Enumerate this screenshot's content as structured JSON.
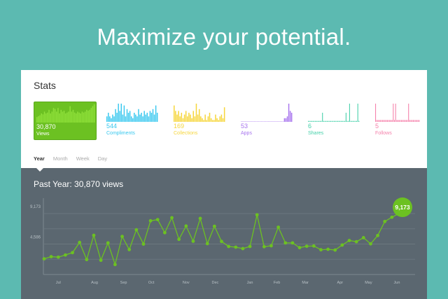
{
  "headline": "Maximize your potential.",
  "card": {
    "title": "Stats"
  },
  "stats": [
    {
      "value": "30,870",
      "label": "Views",
      "color": "#8fe03a",
      "active": true,
      "bars": [
        0.3,
        0.35,
        0.4,
        0.5,
        0.45,
        0.6,
        0.5,
        0.55,
        0.7,
        0.5,
        0.6,
        0.8,
        0.75,
        0.6,
        0.8,
        0.5,
        0.7,
        0.6,
        0.65,
        0.5,
        0.55,
        0.6,
        0.9,
        0.6,
        0.7,
        0.55,
        0.5,
        0.6,
        0.55,
        0.5,
        0.6,
        0.55,
        0.6,
        0.7,
        0.65,
        0.7,
        0.8,
        0.9,
        1.0
      ]
    },
    {
      "value": "544",
      "label": "Compliments",
      "color": "#38c8ef",
      "active": false,
      "bars": [
        0.3,
        0.5,
        0.3,
        0.2,
        0.4,
        0.3,
        0.7,
        0.5,
        1.0,
        0.6,
        1.0,
        0.4,
        0.9,
        0.3,
        0.7,
        0.5,
        0.6,
        0.3,
        0.2,
        0.5,
        0.4,
        0.3,
        0.7,
        0.4,
        0.5,
        0.3,
        0.6,
        0.4,
        0.5,
        0.3,
        0.6,
        0.5,
        0.7,
        0.4,
        0.9,
        0.5
      ]
    },
    {
      "value": "169",
      "label": "Collections",
      "color": "#f6d63c",
      "active": false,
      "bars": [
        0.9,
        0.6,
        0.4,
        0.6,
        0.3,
        0.5,
        0.2,
        0.4,
        0.6,
        0.3,
        0.5,
        0.4,
        0.2,
        0.6,
        0.3,
        1.0,
        0.4,
        0.7,
        0.3,
        0.2,
        0.1,
        0.4,
        0.1,
        0.3,
        0.5,
        0.2,
        0.1,
        0.1,
        0.4,
        0.2,
        0.1,
        0.3,
        0.4,
        0.2,
        0.8
      ]
    },
    {
      "value": "53",
      "label": "Apps",
      "color": "#a875ee",
      "active": false,
      "bars": [
        0.02,
        0.02,
        0.02,
        0.02,
        0.02,
        0.02,
        0.02,
        0.02,
        0.02,
        0.02,
        0.02,
        0.02,
        0.02,
        0.02,
        0.02,
        0.02,
        0.02,
        0.02,
        0.02,
        0.02,
        0.02,
        0.02,
        0.02,
        0.02,
        0.02,
        0.02,
        0.02,
        0.02,
        0.02,
        0.02,
        0.2,
        0.2,
        0.3,
        1.0,
        0.6,
        0.5
      ]
    },
    {
      "value": "6",
      "label": "Shares",
      "color": "#44d0a9",
      "active": false,
      "bars": [
        0.05,
        0.05,
        0.05,
        0.05,
        0.05,
        0.05,
        0.05,
        0.05,
        0.05,
        0.05,
        0.05,
        0.05,
        0.5,
        0.05,
        0.05,
        0.05,
        0.05,
        0.05,
        0.05,
        0.05,
        0.05,
        0.05,
        0.05,
        0.05,
        0.05,
        0.05,
        0.05,
        0.05,
        0.05,
        0.05,
        0.05,
        0.05,
        0.5,
        0.05,
        0.05,
        1.0,
        0.05,
        0.05,
        0.05,
        0.05,
        0.05,
        0.05,
        1.0,
        0.05
      ]
    },
    {
      "value": "5",
      "label": "Follows",
      "color": "#f581ab",
      "active": false,
      "bars": [
        1.0,
        0.1,
        0.1,
        0.1,
        0.1,
        0.1,
        0.1,
        0.1,
        0.1,
        0.1,
        0.1,
        0.1,
        0.1,
        0.1,
        0.1,
        1.0,
        0.1,
        1.0,
        0.1,
        0.1,
        0.1,
        0.1,
        0.1,
        0.1,
        0.1,
        0.1,
        0.1,
        0.1,
        1.0,
        0.1,
        0.1,
        0.1,
        0.1,
        0.1,
        0.1,
        0.1,
        0.1,
        0.1
      ]
    }
  ],
  "tabs": [
    {
      "label": "Year",
      "active": true
    },
    {
      "label": "Month"
    },
    {
      "label": "Week"
    },
    {
      "label": "Day"
    }
  ],
  "main": {
    "subtitle": "Past Year: 30,870 views"
  },
  "chart_data": {
    "type": "line",
    "line_color": "#6cc122",
    "y_ticks": [
      {
        "label": "9,173",
        "value": 9173
      },
      {
        "label": "4,586",
        "value": 4586
      }
    ],
    "ylim": [
      0,
      11500
    ],
    "grid": true,
    "x_ticks": [
      {
        "label": "Jul",
        "at": 2.0
      },
      {
        "label": "Aug",
        "at": 7.1
      },
      {
        "label": "Sep",
        "at": 11.2
      },
      {
        "label": "Oct",
        "at": 15.1
      },
      {
        "label": "Nov",
        "at": 20.0
      },
      {
        "label": "Dec",
        "at": 24.1
      },
      {
        "label": "Jan",
        "at": 29.0
      },
      {
        "label": "Feb",
        "at": 32.8
      },
      {
        "label": "Mar",
        "at": 36.8
      },
      {
        "label": "Apr",
        "at": 41.7
      },
      {
        "label": "May",
        "at": 45.7
      },
      {
        "label": "Jun",
        "at": 49.7
      }
    ],
    "values": [
      2363,
      2685,
      2613,
      2936,
      3294,
      4833,
      2255,
      5907,
      2148,
      4761,
      1504,
      5728,
      3759,
      6730,
      4582,
      8091,
      8270,
      6301,
      8556,
      5298,
      7303,
      5012,
      8449,
      4654,
      7267,
      4976,
      4224,
      4117,
      3902,
      4224,
      8986,
      4189,
      4332,
      7124,
      4761,
      4761,
      4045,
      4260,
      4296,
      3723,
      3795,
      3687,
      4439,
      5119,
      4940,
      5549,
      4618,
      5871,
      7983,
      8628,
      9173
    ],
    "highlight": {
      "label": "9,173"
    }
  }
}
